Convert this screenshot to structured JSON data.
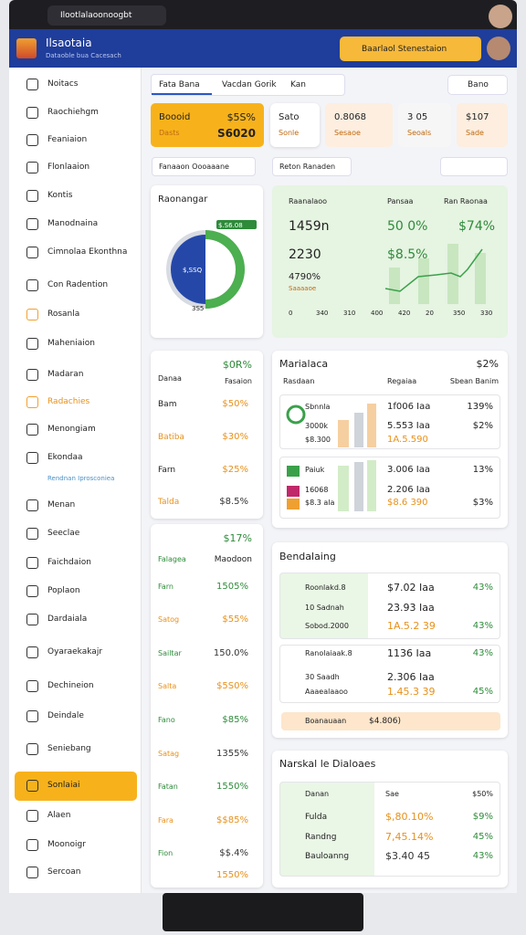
{
  "browser": {
    "tab": "Ilootlalaoonoogbt"
  },
  "header": {
    "title": "Ilsaotaia",
    "subtitle": "Dataoble bua Cacesach",
    "search": "Baarlaol Stenestaion"
  },
  "sidebar": {
    "items": [
      "Noitacs",
      "Raochiehgm",
      "Feaniaion",
      "Flonlaaion",
      "Kontis",
      "Manodnaina",
      "Cimnolaa Ekonthna",
      "Con Radention",
      "Rosanla",
      "Maheniaion",
      "Madaran",
      "Radachies",
      "Menongiam",
      "Ekondaa",
      "Rendnan Iprosconiea",
      "Menan",
      "Seeclae",
      "Faichdaion",
      "Poplaon",
      "Dardaiala",
      "Oyaraekakajr",
      "Dechineion",
      "Deindale",
      "Seniebang",
      "Sonlaiai",
      "Alaen",
      "Moonoigr",
      "Sercoan"
    ]
  },
  "toolbar": {
    "tabs": [
      "Fata Bana",
      "Vacdan Gorik",
      "Kan"
    ],
    "button": "Bano",
    "filters": [
      "Fanaaon Oooaaane",
      "Reton Ranaden"
    ]
  },
  "kpis": [
    {
      "label": "Boooid",
      "value": "$5S%",
      "sub": "Dasts",
      "value2": "S6020"
    },
    {
      "label": "Sato",
      "sub": "Sonle"
    },
    {
      "label": "0.8068",
      "sub": "Sesaoe"
    },
    {
      "label": "3 05",
      "sub": "Seoals"
    },
    {
      "label": "$107",
      "sub": "Sade"
    }
  ],
  "donut": {
    "title": "Raonangar",
    "center": "$,SSQ",
    "badge": "$.S6.08",
    "foot": "3S5"
  },
  "trend": {
    "headers": [
      "Raanalaoo",
      "Pansaa",
      "Ran Raonaa"
    ],
    "rows": [
      [
        "1459n",
        "50 0%",
        "$74%"
      ],
      [
        "2230",
        "$8.5%"
      ],
      [
        "4790%"
      ]
    ],
    "note": "Saaaaoe",
    "axis": [
      "0",
      "340",
      "310",
      "400",
      "420",
      "20",
      "350",
      "330"
    ]
  },
  "table1": {
    "header": "$0R%",
    "columns": [
      "Danaa",
      "Fasaion"
    ],
    "rows": [
      [
        "Bam",
        "$50%"
      ],
      [
        "Batiba",
        "$30%"
      ],
      [
        "Farn",
        "$25%"
      ],
      [
        "Talda",
        "$8.5%"
      ]
    ]
  },
  "table2": {
    "header": "$17%",
    "columns": [
      "Falagea",
      "Maodoon"
    ],
    "rows": [
      [
        "Farn",
        "1505%"
      ],
      [
        "Satog",
        "$55%"
      ],
      [
        "Sailtar",
        "150.0%"
      ],
      [
        "Salta",
        "$5S0%"
      ],
      [
        "Fano",
        "$85%"
      ],
      [
        "Satag",
        "1355%"
      ],
      [
        "Fatan",
        "1550%"
      ],
      [
        "Fara",
        "$$85%"
      ],
      [
        "Fion",
        "$$.4%"
      ]
    ],
    "footer": "1550%"
  },
  "panel1": {
    "title": "Marialaca",
    "total": "$2%",
    "columns": [
      "Rasdaan",
      "Regaiaa",
      "Sbean Banim"
    ],
    "rows": [
      {
        "label": "Sbnnla",
        "value": "1f006 Iaa",
        "pct": "139%"
      },
      {
        "label": "3000k",
        "value": "5.553 Iaa",
        "pct": "$2%"
      },
      {
        "label": "$8.300",
        "value": "1A.5.590"
      },
      {
        "label": "Paiuk",
        "value": "3.006 Iaa",
        "pct": "13%"
      },
      {
        "label": "16068",
        "value": "2.206 Iaa"
      },
      {
        "label": "$8.3 ala",
        "value": "$8.6 390",
        "pct": "$3%"
      }
    ]
  },
  "panel2": {
    "title": "Bendalaing",
    "rows": [
      {
        "label": "Roonlakd.8",
        "value": "$7.02 Iaa",
        "pct": "43%"
      },
      {
        "label": "10 Sadnah",
        "value": "23.93 Iaa"
      },
      {
        "label": "Sobod.2000",
        "value": "1A.5.2 39",
        "pct": "43%"
      },
      {
        "label": "Ranolaiaak.8",
        "value": "1136 Iaa",
        "pct": "43%"
      },
      {
        "label": "30 Saadh",
        "value": "2.306 Iaa"
      },
      {
        "label": "Aaaealaaoo",
        "value": "1.45.3 39",
        "pct": "45%"
      }
    ],
    "footer": "Boanauaan",
    "footer_value": "$4.806)"
  },
  "panel3": {
    "title": "Narskal le Dialoaes",
    "columns": [
      "Danan",
      "Sae",
      "$50%"
    ],
    "rows": [
      [
        "Fulda",
        "$,80.10%",
        "$9%"
      ],
      [
        "Randng",
        "7,45.14%",
        "45%"
      ],
      [
        "Bauloanng",
        "$3.40 45",
        "43%"
      ]
    ]
  }
}
